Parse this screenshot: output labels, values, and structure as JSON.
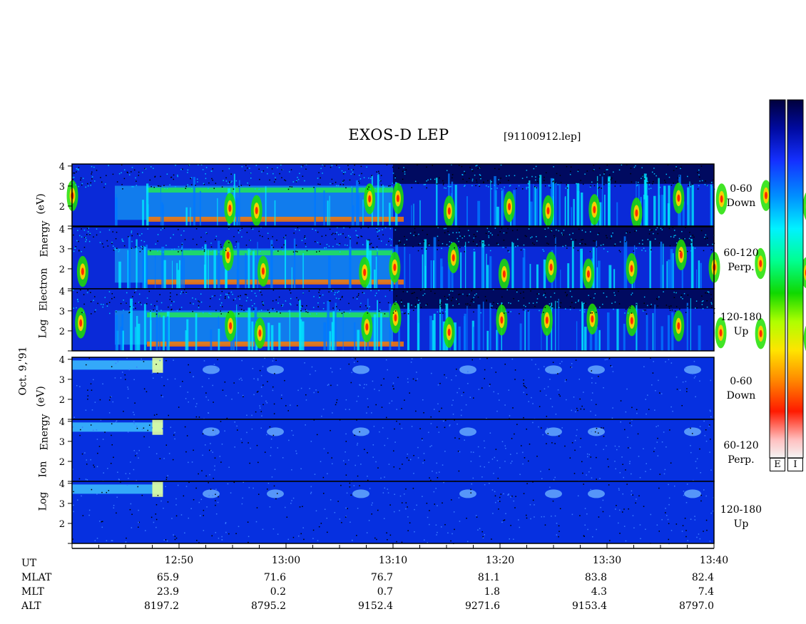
{
  "chart_data": {
    "type": "heatmap",
    "title": "EXOS-D LEP",
    "file": "[91100912.lep]",
    "date": "Oct. 9,'91",
    "colorbar": {
      "labels": [
        "E",
        "I"
      ],
      "colors": [
        "#f2f2f2",
        "#ffb8b8",
        "#ff2a00",
        "#ff8800",
        "#ffdd00",
        "#c8ff00",
        "#28e000",
        "#00ff88",
        "#00f0ff",
        "#0098ff",
        "#1038ff",
        "#000fa8",
        "#000048"
      ]
    },
    "groups": [
      {
        "species_label": "Electron",
        "prefix": "Log",
        "suffix": "Energy",
        "unit": "(eV)",
        "panels": [
          {
            "pitch": "0-60",
            "direction": "Down"
          },
          {
            "pitch": "60-120",
            "direction": "Perp."
          },
          {
            "pitch": "120-180",
            "direction": "Up"
          }
        ]
      },
      {
        "species_label": "Ion",
        "prefix": "Log",
        "suffix": "Energy",
        "unit": "(eV)",
        "panels": [
          {
            "pitch": "0-60",
            "direction": "Down"
          },
          {
            "pitch": "60-120",
            "direction": "Perp."
          },
          {
            "pitch": "120-180",
            "direction": "Up"
          }
        ]
      }
    ],
    "y_ticks": [
      "4",
      "3",
      "2"
    ],
    "ylim": [
      1,
      4.1
    ],
    "x_range": [
      "12:40",
      "13:40"
    ],
    "x_ticks": [
      "12:50",
      "13:00",
      "13:10",
      "13:20",
      "13:30",
      "13:40"
    ],
    "ephemeris": [
      {
        "name": "UT",
        "values": []
      },
      {
        "name": "MLAT",
        "values": [
          "65.9",
          "71.6",
          "76.7",
          "81.1",
          "83.8",
          "82.4"
        ]
      },
      {
        "name": "MLT",
        "values": [
          "23.9",
          "0.2",
          "0.7",
          "1.8",
          "4.3",
          "7.4"
        ]
      },
      {
        "name": "ALT",
        "values": [
          "8197.2",
          "8795.2",
          "9152.4",
          "9271.6",
          "9153.4",
          "8797.0"
        ]
      }
    ]
  }
}
